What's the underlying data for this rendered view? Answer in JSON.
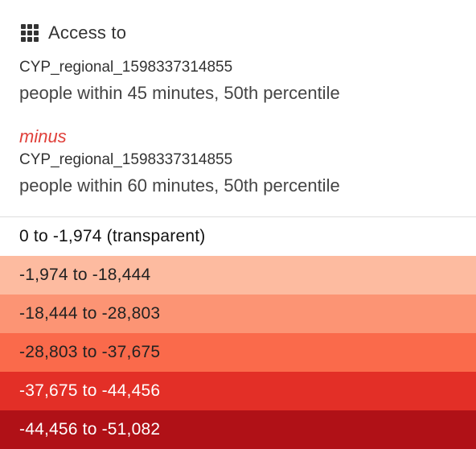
{
  "header": {
    "icon": "grid-icon",
    "title": "Access to"
  },
  "primary": {
    "source": "CYP_regional_1598337314855",
    "description": "people within 45 minutes, 50th percentile"
  },
  "operator": {
    "label": "minus",
    "color": "#e0403a"
  },
  "secondary": {
    "source": "CYP_regional_1598337314855",
    "description": "people within 60 minutes, 50th percentile"
  },
  "legend": {
    "items": [
      {
        "label": "0 to -1,974 (transparent)",
        "color": "#ffffff",
        "text_color": "#111111"
      },
      {
        "label": "-1,974 to -18,444",
        "color": "#fdbba0",
        "text_color": "#222222"
      },
      {
        "label": "-18,444 to -28,803",
        "color": "#fc9474",
        "text_color": "#222222"
      },
      {
        "label": "-28,803 to -37,675",
        "color": "#fa6a4b",
        "text_color": "#222222"
      },
      {
        "label": "-37,675 to -44,456",
        "color": "#e32f27",
        "text_color": "#ffffff"
      },
      {
        "label": "-44,456 to -51,082",
        "color": "#b01117",
        "text_color": "#ffffff"
      }
    ]
  }
}
